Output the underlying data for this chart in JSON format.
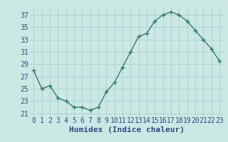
{
  "x": [
    0,
    1,
    2,
    3,
    4,
    5,
    6,
    7,
    8,
    9,
    10,
    11,
    12,
    13,
    14,
    15,
    16,
    17,
    18,
    19,
    20,
    21,
    22,
    23
  ],
  "y": [
    28,
    25,
    25.5,
    23.5,
    23,
    22,
    22,
    21.5,
    22,
    24.5,
    26,
    28.5,
    31,
    33.5,
    34,
    36,
    37,
    37.5,
    37,
    36,
    34.5,
    33,
    31.5,
    29.5
  ],
  "line_color": "#2e7d6e",
  "marker": "+",
  "marker_size": 4,
  "bg_color": "#cce8e4",
  "grid_color": "#add4d0",
  "xlabel": "Humidex (Indice chaleur)",
  "xlim": [
    -0.5,
    23.5
  ],
  "ylim": [
    20.5,
    38.5
  ],
  "yticks": [
    21,
    23,
    25,
    27,
    29,
    31,
    33,
    35,
    37
  ],
  "xticks": [
    0,
    1,
    2,
    3,
    4,
    5,
    6,
    7,
    8,
    9,
    10,
    11,
    12,
    13,
    14,
    15,
    16,
    17,
    18,
    19,
    20,
    21,
    22,
    23
  ],
  "font_color": "#2e4a80",
  "tick_fontsize": 7,
  "xlabel_fontsize": 8,
  "line_width": 1.0,
  "marker_edge_width": 1.0
}
